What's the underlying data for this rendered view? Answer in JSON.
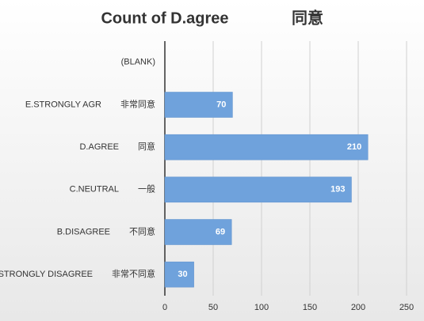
{
  "chart_data": {
    "type": "bar",
    "orientation": "horizontal",
    "title": "Count of D.agree",
    "title2": "同意",
    "categories": [
      "(BLANK)",
      "E.STRONGLY AGR",
      "D.AGREE",
      "C.NEUTRAL",
      "B.DISAGREE",
      "A.STRONGLY DISAGREE"
    ],
    "categories2": [
      null,
      "非常同意",
      "同意",
      "一般",
      "不同意",
      "非常不同意"
    ],
    "values": [
      null,
      70,
      210,
      193,
      69,
      30
    ],
    "color": "#6fa2dc",
    "xlim": [
      0,
      250
    ],
    "xticks": [
      0,
      50,
      100,
      150,
      200,
      250
    ],
    "grid": true
  }
}
